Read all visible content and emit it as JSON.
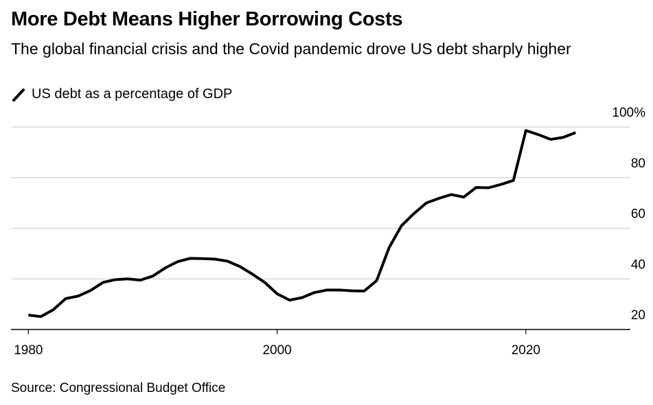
{
  "chart_data": {
    "type": "line",
    "title": "More Debt Means Higher Borrowing Costs",
    "subtitle": "The global financial crisis and the Covid pandemic drove US debt sharply higher",
    "source": "Source: Congressional Budget Office",
    "x": [
      1980,
      1981,
      1982,
      1983,
      1984,
      1985,
      1986,
      1987,
      1988,
      1989,
      1990,
      1991,
      1992,
      1993,
      1994,
      1995,
      1996,
      1997,
      1998,
      1999,
      2000,
      2001,
      2002,
      2003,
      2004,
      2005,
      2006,
      2007,
      2008,
      2009,
      2010,
      2011,
      2012,
      2013,
      2014,
      2015,
      2016,
      2017,
      2018,
      2019,
      2020,
      2021,
      2022,
      2023,
      2024
    ],
    "series": [
      {
        "name": "US debt as a percentage of GDP",
        "color": "#000000",
        "values": [
          25.7,
          25.1,
          27.8,
          32.2,
          33.2,
          35.4,
          38.6,
          39.7,
          40.0,
          39.5,
          41.1,
          44.3,
          46.8,
          48.1,
          48.0,
          47.8,
          47.0,
          44.9,
          41.9,
          38.6,
          34.1,
          31.6,
          32.6,
          34.6,
          35.6,
          35.6,
          35.3,
          35.2,
          39.3,
          52.3,
          61.0,
          65.8,
          70.0,
          71.8,
          73.3,
          72.3,
          76.1,
          76.0,
          77.3,
          78.9,
          98.6,
          97.0,
          95.1,
          95.9,
          97.8
        ]
      }
    ],
    "xlim": [
      1978.6,
      2028.4
    ],
    "xticks": [
      1980,
      2000,
      2020
    ],
    "ylim": [
      20,
      100
    ],
    "yticks": [
      20,
      40,
      60,
      80,
      {
        "value": 100,
        "label": "100%"
      }
    ],
    "grid": true
  }
}
